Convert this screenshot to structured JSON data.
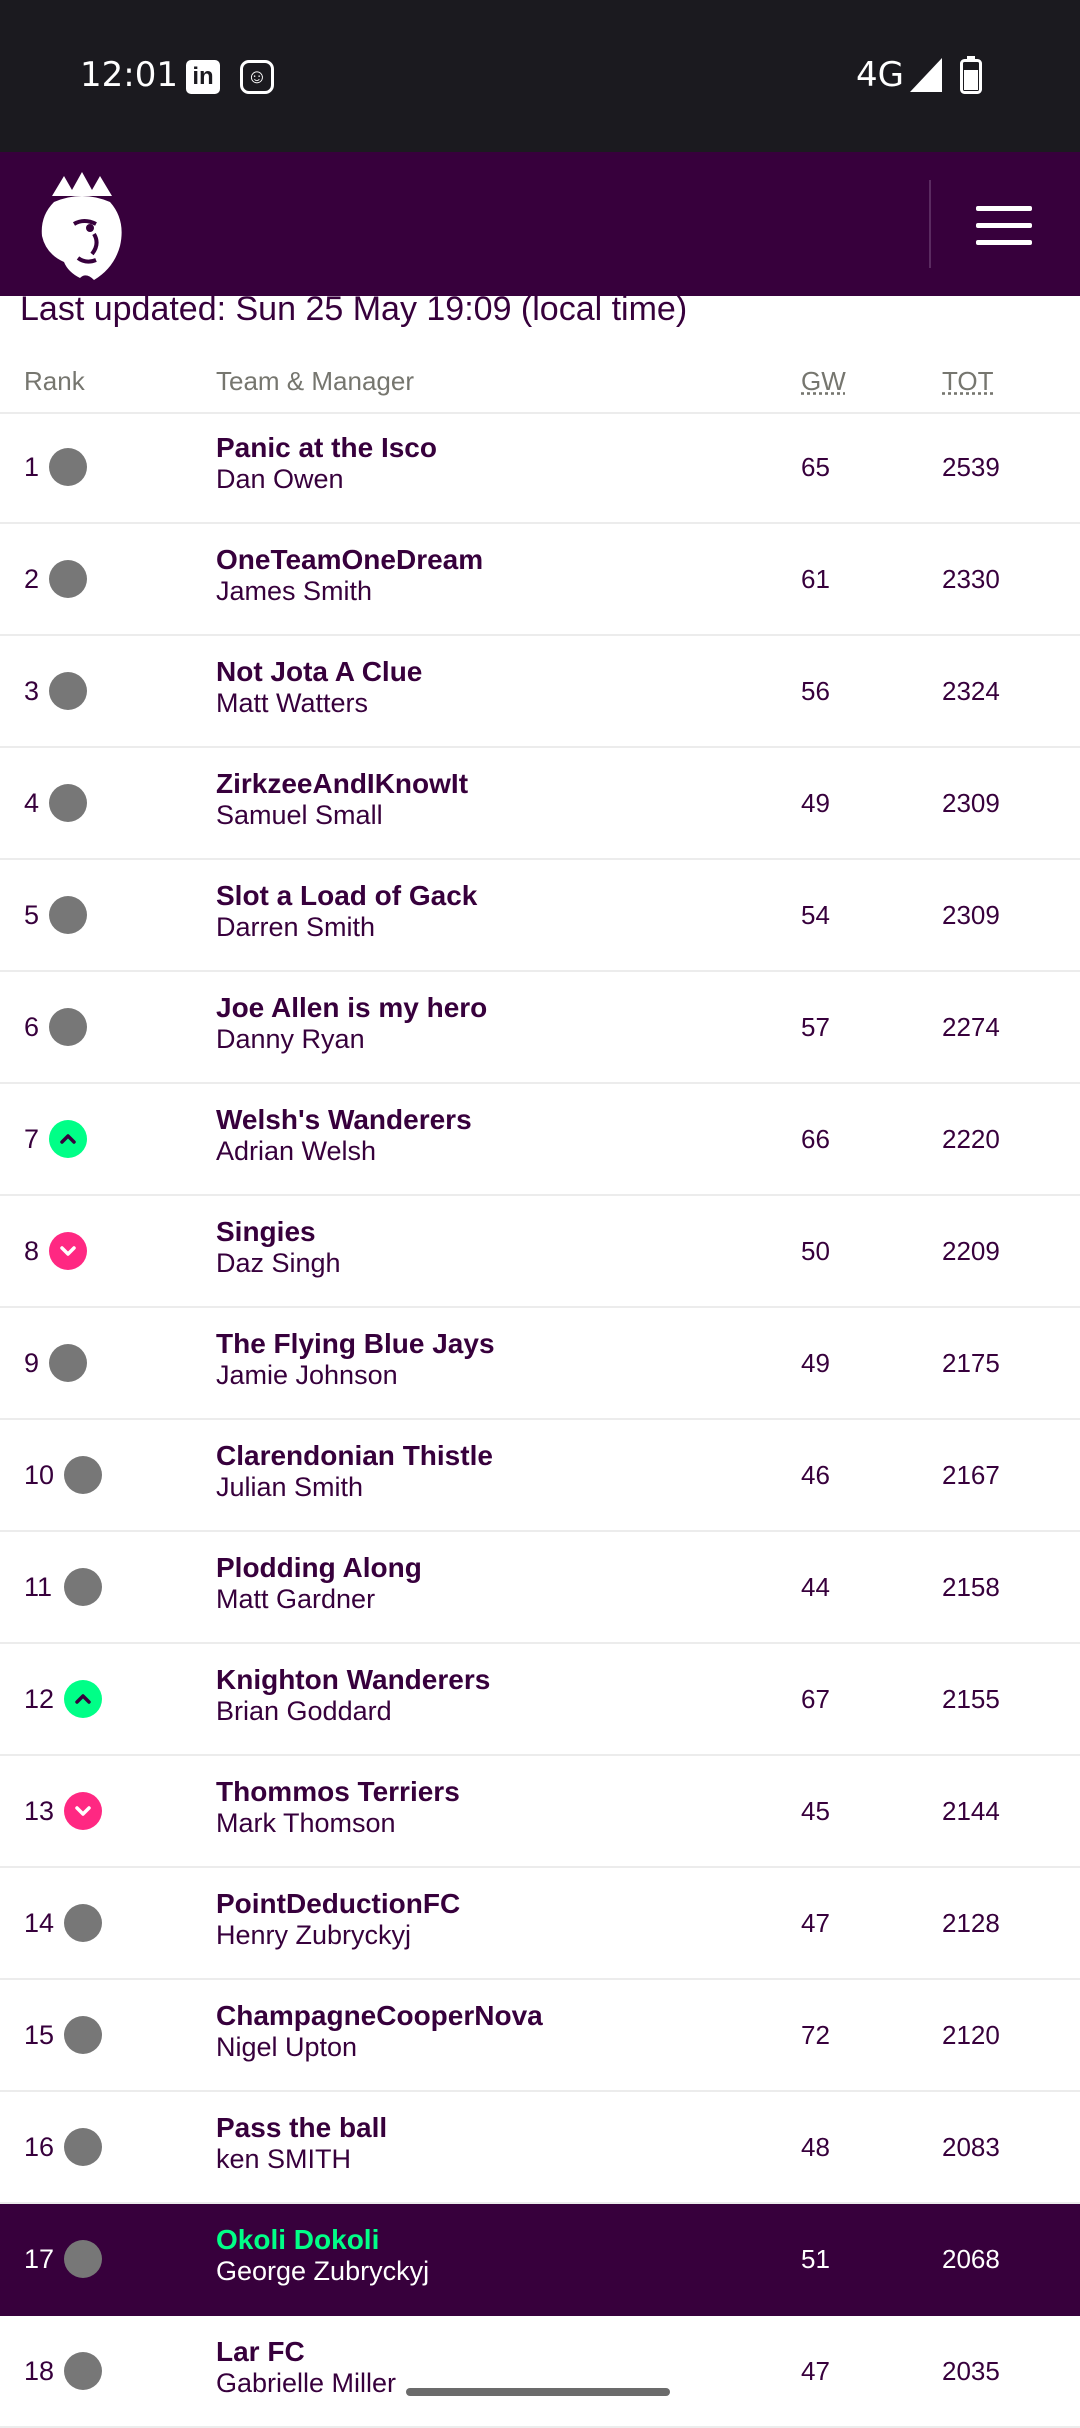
{
  "status_bar": {
    "time": "12:01",
    "network": "4G",
    "linkedin_icon": "in",
    "app_icon": "☺"
  },
  "header": {
    "logo": "premier-league-lion-logo",
    "menu": "menu-icon"
  },
  "last_updated": "Last updated: Sun 25 May 19:09 (local time)",
  "columns": {
    "rank": "Rank",
    "team": "Team & Manager",
    "gw": "GW",
    "tot": "TOT"
  },
  "colors": {
    "purple": "#37003c",
    "up": "#00ff87",
    "down": "#ff2882",
    "same": "#777777"
  },
  "rows": [
    {
      "rank": "1",
      "move": "same",
      "team": "Panic at the Isco",
      "manager": "Dan Owen",
      "gw": "65",
      "tot": "2539"
    },
    {
      "rank": "2",
      "move": "same",
      "team": "OneTeamOneDream",
      "manager": "James Smith",
      "gw": "61",
      "tot": "2330"
    },
    {
      "rank": "3",
      "move": "same",
      "team": "Not Jota A Clue",
      "manager": "Matt Watters",
      "gw": "56",
      "tot": "2324"
    },
    {
      "rank": "4",
      "move": "same",
      "team": "ZirkzeeAndIKnowIt",
      "manager": "Samuel Small",
      "gw": "49",
      "tot": "2309"
    },
    {
      "rank": "5",
      "move": "same",
      "team": "Slot a Load of Gack",
      "manager": "Darren Smith",
      "gw": "54",
      "tot": "2309"
    },
    {
      "rank": "6",
      "move": "same",
      "team": "Joe Allen is my hero",
      "manager": "Danny Ryan",
      "gw": "57",
      "tot": "2274"
    },
    {
      "rank": "7",
      "move": "up",
      "team": "Welsh's Wanderers",
      "manager": "Adrian Welsh",
      "gw": "66",
      "tot": "2220"
    },
    {
      "rank": "8",
      "move": "down",
      "team": "Singies",
      "manager": "Daz Singh",
      "gw": "50",
      "tot": "2209"
    },
    {
      "rank": "9",
      "move": "same",
      "team": "The Flying Blue Jays",
      "manager": "Jamie Johnson",
      "gw": "49",
      "tot": "2175"
    },
    {
      "rank": "10",
      "move": "same",
      "team": "Clarendonian Thistle",
      "manager": "Julian Smith",
      "gw": "46",
      "tot": "2167"
    },
    {
      "rank": "11",
      "move": "same",
      "team": "Plodding Along",
      "manager": "Matt Gardner",
      "gw": "44",
      "tot": "2158"
    },
    {
      "rank": "12",
      "move": "up",
      "team": "Knighton Wanderers",
      "manager": "Brian Goddard",
      "gw": "67",
      "tot": "2155"
    },
    {
      "rank": "13",
      "move": "down",
      "team": "Thommos Terriers",
      "manager": "Mark Thomson",
      "gw": "45",
      "tot": "2144"
    },
    {
      "rank": "14",
      "move": "same",
      "team": "PointDeductionFC",
      "manager": "Henry Zubryckyj",
      "gw": "47",
      "tot": "2128"
    },
    {
      "rank": "15",
      "move": "same",
      "team": "ChampagneCooperNova",
      "manager": "Nigel Upton",
      "gw": "72",
      "tot": "2120"
    },
    {
      "rank": "16",
      "move": "same",
      "team": "Pass the ball",
      "manager": "ken SMITH",
      "gw": "48",
      "tot": "2083"
    },
    {
      "rank": "17",
      "move": "same",
      "team": "Okoli Dokoli",
      "manager": "George Zubryckyj",
      "gw": "51",
      "tot": "2068",
      "me": true
    },
    {
      "rank": "18",
      "move": "same",
      "team": "Lar FC",
      "manager": "Gabrielle Miller",
      "gw": "47",
      "tot": "2035"
    }
  ]
}
